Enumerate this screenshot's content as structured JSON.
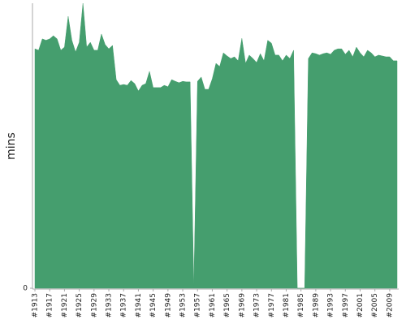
{
  "chart_data": {
    "type": "area",
    "y_label": "mins",
    "color": "#459e6e",
    "categories": [
      "#1913",
      null,
      null,
      null,
      "#1917",
      null,
      null,
      null,
      "#1921",
      null,
      null,
      null,
      "#1925",
      null,
      null,
      null,
      "#1929",
      null,
      null,
      null,
      "#1933",
      null,
      null,
      null,
      "#1937",
      null,
      null,
      null,
      "#1941",
      null,
      null,
      null,
      "#1945",
      null,
      null,
      null,
      "#1949",
      null,
      null,
      null,
      "#1953",
      null,
      null,
      null,
      "#1957",
      null,
      null,
      null,
      "#1961",
      null,
      null,
      null,
      "#1965",
      null,
      null,
      null,
      "#1969",
      null,
      null,
      null,
      "#1973",
      null,
      null,
      null,
      "#1977",
      null,
      null,
      null,
      "#1981",
      null,
      null,
      null,
      "#1985",
      null,
      null,
      null,
      "#1989",
      null,
      null,
      null,
      "#1993",
      null,
      null,
      null,
      "#1997",
      null,
      null,
      null,
      "#2001",
      null,
      null,
      null,
      "#2005",
      null,
      null,
      null,
      "#2009",
      null,
      null
    ],
    "values": [
      84,
      83.5,
      87.5,
      87,
      87.5,
      88.6,
      87.5,
      83.5,
      84.6,
      95.4,
      87,
      82.9,
      86.3,
      100,
      84.6,
      86.3,
      83.5,
      83.5,
      89.2,
      85.5,
      84,
      85.2,
      73.2,
      71.2,
      71.5,
      71.2,
      72.9,
      71.8,
      69.2,
      71.2,
      71.8,
      76.1,
      70.4,
      70.4,
      70.4,
      71.2,
      70.7,
      73.2,
      72.6,
      72.1,
      72.6,
      72.4,
      72.4,
      0,
      72.6,
      74.1,
      69.8,
      69.8,
      73.5,
      78.9,
      77.8,
      82.6,
      81.5,
      80.6,
      81.2,
      79.8,
      87.7,
      78.9,
      81.8,
      80.6,
      79.2,
      82.3,
      79.8,
      87,
      86,
      81.8,
      81.8,
      79.8,
      81.8,
      80.6,
      83.5,
      0,
      0,
      0,
      80.6,
      82.6,
      82.3,
      81.8,
      82.3,
      82.6,
      82.1,
      83.5,
      84,
      84,
      82.1,
      83.5,
      81.2,
      84.6,
      82.6,
      81.2,
      83.5,
      82.6,
      81.2,
      81.8,
      81.5,
      81.2,
      81.2,
      79.8,
      79.8
    ],
    "ylim": [
      0,
      100
    ],
    "yticks": [
      0
    ]
  }
}
